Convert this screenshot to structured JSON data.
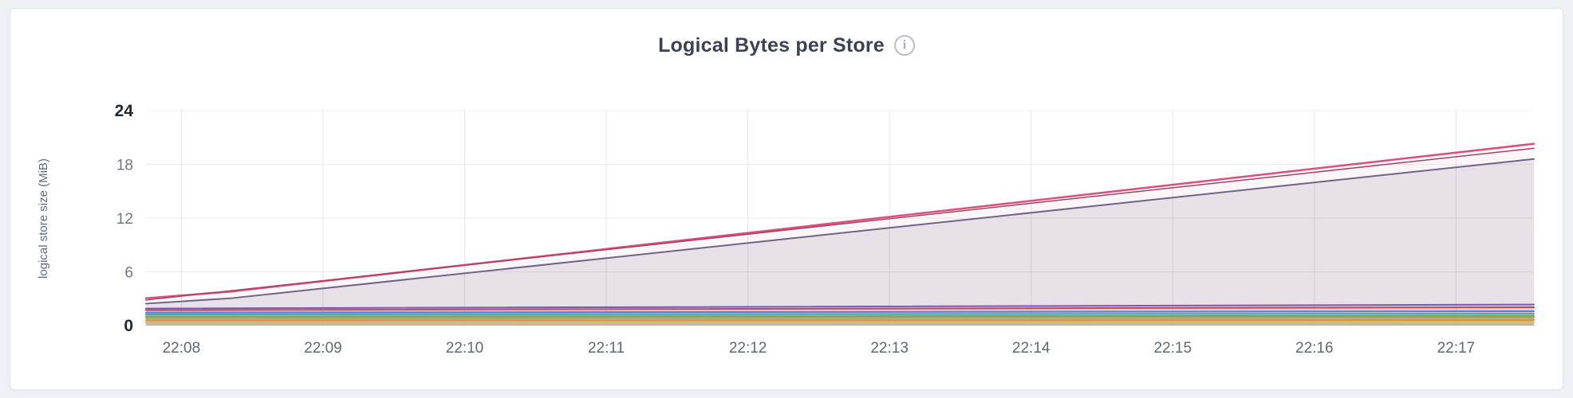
{
  "page": {
    "background": "#edf0f4"
  },
  "header": {
    "info_icon": "i"
  },
  "chart_data": {
    "type": "area",
    "title": "Logical Bytes per Store",
    "xlabel": "",
    "ylabel": "logical store size (MiB)",
    "x_ticks": [
      "22:08",
      "22:09",
      "22:10",
      "22:11",
      "22:12",
      "22:13",
      "22:14",
      "22:15",
      "22:16",
      "22:17"
    ],
    "y_ticks": [
      0,
      6,
      12,
      18,
      24
    ],
    "ylim": [
      0,
      24
    ],
    "xlim": [
      -0.25,
      9.55
    ],
    "grid": true,
    "legend": "none",
    "series": [
      {
        "color": "#d94f7e",
        "width": 2.5,
        "fill_opacity": 0.05,
        "x": [
          -0.25,
          0.35,
          9.55
        ],
        "y": [
          3.05,
          3.8,
          20.3
        ]
      },
      {
        "color": "#a8435f",
        "width": 1.5,
        "fill_opacity": 0,
        "x": [
          -0.25,
          9.55
        ],
        "y": [
          2.85,
          19.8
        ]
      },
      {
        "color": "#6f6486",
        "width": 2,
        "fill_opacity": 0.14,
        "x": [
          -0.25,
          0.35,
          9.55
        ],
        "y": [
          2.45,
          3.05,
          18.6
        ]
      },
      {
        "color": "#7a58b8",
        "width": 2,
        "fill_opacity": 0.08,
        "x": [
          -0.25,
          9.55
        ],
        "y": [
          1.9,
          2.35
        ]
      },
      {
        "color": "#c14953",
        "width": 2,
        "fill_opacity": 0.07,
        "x": [
          -0.25,
          9.55
        ],
        "y": [
          1.72,
          2.05
        ]
      },
      {
        "color": "#5b7fd0",
        "width": 2,
        "fill_opacity": 0.07,
        "x": [
          -0.25,
          9.55
        ],
        "y": [
          1.45,
          1.6
        ]
      },
      {
        "color": "#49a6b0",
        "width": 2,
        "fill_opacity": 0.07,
        "x": [
          -0.25,
          9.55
        ],
        "y": [
          1.25,
          1.32
        ]
      },
      {
        "color": "#69a85e",
        "width": 2,
        "fill_opacity": 0.08,
        "x": [
          -0.25,
          9.55
        ],
        "y": [
          1.02,
          1.08
        ]
      },
      {
        "color": "#b1a33e",
        "width": 2,
        "fill_opacity": 0.1,
        "x": [
          -0.25,
          9.55
        ],
        "y": [
          0.82,
          0.88
        ]
      },
      {
        "color": "#dd8f3e",
        "width": 2,
        "fill_opacity": 0.12,
        "x": [
          -0.25,
          9.55
        ],
        "y": [
          0.58,
          0.62
        ]
      },
      {
        "color": "#d4bf6a",
        "width": 2,
        "fill_opacity": 0.12,
        "x": [
          -0.25,
          9.55
        ],
        "y": [
          0.33,
          0.36
        ]
      }
    ]
  }
}
